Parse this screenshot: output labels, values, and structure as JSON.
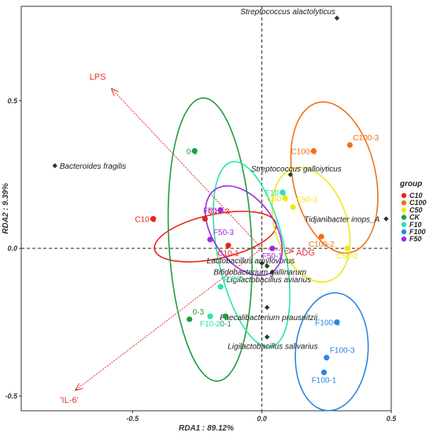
{
  "chart_data": {
    "type": "scatter",
    "subtype": "RDA biplot",
    "title": "",
    "xlabel": "RDA1 : 89.12%",
    "ylabel": "RDA2 : 9.39%",
    "xlim": [
      -0.93,
      0.5
    ],
    "ylim": [
      -0.55,
      0.82
    ],
    "x_ticks": [
      -0.5,
      0.0,
      0.5
    ],
    "y_ticks": [
      -0.5,
      0.0,
      0.5
    ],
    "x_tick_labels": [
      "-0.5",
      "0.0",
      "0.5"
    ],
    "y_tick_labels": [
      "-0.5",
      "0.0",
      "0.5"
    ],
    "reference_lines": {
      "x": 0,
      "y": 0,
      "style": "dashed"
    },
    "legend": {
      "title": "group",
      "placement": "right",
      "entries": [
        {
          "label": "C10",
          "color": "#e8241c"
        },
        {
          "label": "C100",
          "color": "#f07216"
        },
        {
          "label": "C50",
          "color": "#eaea14"
        },
        {
          "label": "CK",
          "color": "#1e9e3c"
        },
        {
          "label": "F10",
          "color": "#27e5a8"
        },
        {
          "label": "F100",
          "color": "#2a85e6"
        },
        {
          "label": "F50",
          "color": "#9b2be2"
        }
      ]
    },
    "env_vectors": {
      "color": "#e03030",
      "items": [
        {
          "label": "LPS",
          "x": -0.58,
          "y": 0.54
        },
        {
          "label": "'IL-6'",
          "x": -0.72,
          "y": -0.48
        },
        {
          "label": "ADG",
          "x": 0.12,
          "y": -0.01
        }
      ]
    },
    "species": {
      "color": "#1e3d1e",
      "items": [
        {
          "label": "Streptococcus alactolyticus",
          "x": 0.29,
          "y": 0.78
        },
        {
          "label": "Bacteroides fragilis",
          "x": -0.8,
          "y": 0.28
        },
        {
          "label": "Streptococcus galloiyticus",
          "x": 0.11,
          "y": 0.25
        },
        {
          "label": "Tidjanibacter inops_A",
          "x": 0.48,
          "y": 0.1
        },
        {
          "label": "Lactobacillus amylovorus",
          "x": 0.0,
          "y": -0.05
        },
        {
          "label": "Bifidobacterium gallinarum",
          "x": 0.02,
          "y": -0.06
        },
        {
          "label": "Ligilactobacillus aviarius",
          "x": 0.04,
          "y": -0.08
        },
        {
          "label": "Faecalibacterium prausnitzii",
          "x": 0.02,
          "y": -0.2
        },
        {
          "label": "Ligilactobacillus salivarius",
          "x": 0.02,
          "y": -0.3
        }
      ]
    },
    "samples": {
      "C10": [
        {
          "label": "C10-2",
          "x": -0.42,
          "y": 0.1
        },
        {
          "label": "C10-3",
          "x": -0.22,
          "y": 0.1
        },
        {
          "label": "C10-1",
          "x": -0.13,
          "y": 0.01
        }
      ],
      "C100": [
        {
          "label": "C100-1",
          "x": 0.2,
          "y": 0.33
        },
        {
          "label": "C100-3",
          "x": 0.34,
          "y": 0.35
        },
        {
          "label": "C100-2",
          "x": 0.23,
          "y": 0.04
        }
      ],
      "C50": [
        {
          "label": "C50-1",
          "x": 0.09,
          "y": 0.17
        },
        {
          "label": "C50-3",
          "x": 0.12,
          "y": 0.14
        },
        {
          "label": "C50-2",
          "x": 0.33,
          "y": 0.0
        }
      ],
      "CK": [
        {
          "label": "0-2",
          "x": -0.26,
          "y": 0.33
        },
        {
          "label": "0-3",
          "x": -0.28,
          "y": -0.24
        },
        {
          "label": "0-1",
          "x": -0.14,
          "y": -0.23
        }
      ],
      "F10": [
        {
          "label": "F10-3",
          "x": 0.08,
          "y": 0.19
        },
        {
          "label": "F10-1",
          "x": -0.16,
          "y": -0.13
        },
        {
          "label": "F10-2",
          "x": -0.2,
          "y": -0.23
        }
      ],
      "F100": [
        {
          "label": "F100-2",
          "x": 0.29,
          "y": -0.25
        },
        {
          "label": "F100-3",
          "x": 0.25,
          "y": -0.37
        },
        {
          "label": "F100-1",
          "x": 0.24,
          "y": -0.42
        }
      ],
      "F50": [
        {
          "label": "F50-2",
          "x": -0.16,
          "y": 0.13
        },
        {
          "label": "F50-3",
          "x": -0.2,
          "y": 0.03
        },
        {
          "label": "F50-1",
          "x": 0.04,
          "y": 0.0
        }
      ]
    },
    "ellipses": [
      {
        "group": "C10",
        "cx": -0.18,
        "cy": 0.04,
        "rx": 0.24,
        "ry": 0.075,
        "rotation_deg": -12
      },
      {
        "group": "C100",
        "cx": 0.28,
        "cy": 0.24,
        "rx": 0.16,
        "ry": 0.26,
        "rotation_deg": -12
      },
      {
        "group": "C50",
        "cx": 0.19,
        "cy": 0.08,
        "rx": 0.14,
        "ry": 0.2,
        "rotation_deg": -18
      },
      {
        "group": "CK",
        "cx": -0.2,
        "cy": 0.03,
        "rx": 0.16,
        "ry": 0.48,
        "rotation_deg": -3
      },
      {
        "group": "F10",
        "cx": -0.04,
        "cy": -0.02,
        "rx": 0.13,
        "ry": 0.32,
        "rotation_deg": -12
      },
      {
        "group": "F100",
        "cx": 0.27,
        "cy": -0.35,
        "rx": 0.14,
        "ry": 0.2,
        "rotation_deg": 5
      },
      {
        "group": "F50",
        "cx": -0.07,
        "cy": 0.06,
        "rx": 0.12,
        "ry": 0.17,
        "rotation_deg": -35
      }
    ]
  }
}
